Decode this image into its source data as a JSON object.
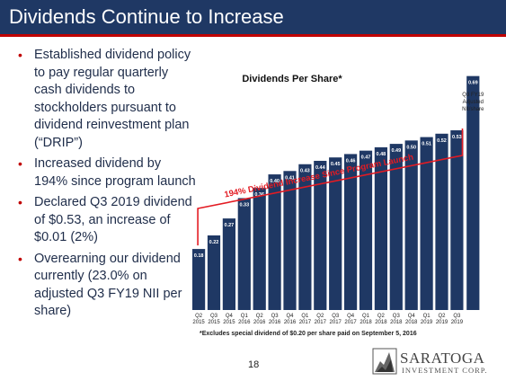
{
  "title": "Dividends Continue to Increase",
  "bullets": [
    "Established dividend policy to pay regular quarterly cash dividends to stockholders pursuant to dividend reinvestment plan (“DRIP”)",
    "Increased dividend by 194% since program launch",
    "Declared Q3 2019 dividend of $0.53, an increase of $0.01 (2%)",
    "Overearning our dividend currently (23.0% on adjusted Q3 FY19 NII per share)"
  ],
  "chart_data": {
    "type": "bar",
    "title": "Dividends Per Share*",
    "categories": [
      {
        "q": "Q2",
        "y": "2015"
      },
      {
        "q": "Q3",
        "y": "2015"
      },
      {
        "q": "Q4",
        "y": "2015"
      },
      {
        "q": "Q1",
        "y": "2016"
      },
      {
        "q": "Q2",
        "y": "2016"
      },
      {
        "q": "Q3",
        "y": "2016"
      },
      {
        "q": "Q4",
        "y": "2016"
      },
      {
        "q": "Q1",
        "y": "2017"
      },
      {
        "q": "Q2",
        "y": "2017"
      },
      {
        "q": "Q3",
        "y": "2017"
      },
      {
        "q": "Q4",
        "y": "2017"
      },
      {
        "q": "Q1",
        "y": "2018"
      },
      {
        "q": "Q2",
        "y": "2018"
      },
      {
        "q": "Q3",
        "y": "2018"
      },
      {
        "q": "Q4",
        "y": "2018"
      },
      {
        "q": "Q1",
        "y": "2019"
      },
      {
        "q": "Q2",
        "y": "2019"
      },
      {
        "q": "Q3",
        "y": "2019"
      }
    ],
    "values": [
      0.18,
      0.22,
      0.27,
      0.33,
      0.36,
      0.4,
      0.41,
      0.43,
      0.44,
      0.45,
      0.46,
      0.47,
      0.48,
      0.49,
      0.5,
      0.51,
      0.52,
      0.53
    ],
    "labels": [
      "0.18",
      "0.22",
      "0.27",
      "0.33",
      "0.36",
      "0.40",
      "0.41",
      "0.43",
      "0.44",
      "0.45",
      "0.46",
      "0.47",
      "0.48",
      "0.49",
      "0.50",
      "0.51",
      "0.52",
      "0.53"
    ],
    "extra_bar": {
      "value": 0.69,
      "label": "0.69",
      "caption": [
        "Q3 FY19",
        "Adjusted",
        "NII/share"
      ]
    },
    "annotation": "194% Dividend Increase Since Program Launch",
    "ylim": [
      0,
      0.75
    ],
    "colors": {
      "bar": "#1f3864",
      "extra_bar": "#1f3864",
      "annotation": "#e31b23"
    }
  },
  "footnote": "*Excludes special dividend of $0.20 per share paid on September 5, 2016",
  "page_number": "18",
  "logo": {
    "name": "SARATOGA",
    "sub": "INVESTMENT CORP.",
    "icon": "saratoga-logo-icon"
  },
  "colors": {
    "title_bar": "#1f3864",
    "accent": "#c00000",
    "bullet_text": "#1f2d4a"
  }
}
